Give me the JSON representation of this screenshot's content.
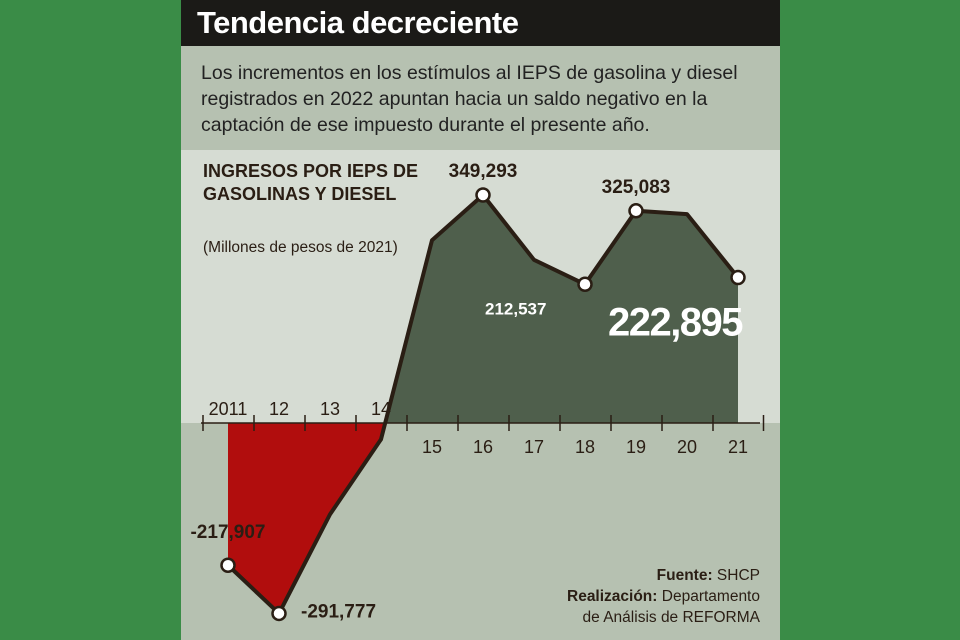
{
  "header": {
    "title": "Tendencia decreciente"
  },
  "subtitle": "Los incrementos en los estímulos al IEPS de gasolina y diesel registrados en 2022 apuntan hacia un saldo negativo en la captación de ese impuesto durante el presente año.",
  "y_title": "INGRESOS POR IEPS DE GASOLINAS Y DIESEL",
  "y_unit": "(Millones de pesos de 2021)",
  "credits": {
    "source_label": "Fuente:",
    "source": "SHCP",
    "author_label": "Realización:",
    "author_line1": "Departamento",
    "author_line2": "de Análisis de REFORMA"
  },
  "colors": {
    "background": "#3a8c47",
    "card": "#b6c1b1",
    "upper_band": "#d6dcd3",
    "positive_fill": "#4f5f4c",
    "negative_fill": "#b10d0d",
    "line": "#2a1e14"
  },
  "chart_data": {
    "type": "area",
    "x": [
      "2011",
      "12",
      "13",
      "14",
      "15",
      "16",
      "17",
      "18",
      "19",
      "20",
      "21"
    ],
    "values": [
      -217907,
      -291777,
      -140000,
      -25000,
      280000,
      349293,
      250000,
      212537,
      325083,
      320000,
      222895
    ],
    "ylim": [
      -300000,
      360000
    ],
    "labels": [
      {
        "index": 0,
        "text": "-217,907"
      },
      {
        "index": 1,
        "text": "-291,777"
      },
      {
        "index": 5,
        "text": "349,293"
      },
      {
        "index": 7,
        "text": "212,537"
      },
      {
        "index": 8,
        "text": "325,083"
      },
      {
        "index": 10,
        "text": "222,895"
      }
    ],
    "marked_points": [
      0,
      1,
      5,
      7,
      8,
      10
    ],
    "grid": false,
    "legend": "none"
  }
}
